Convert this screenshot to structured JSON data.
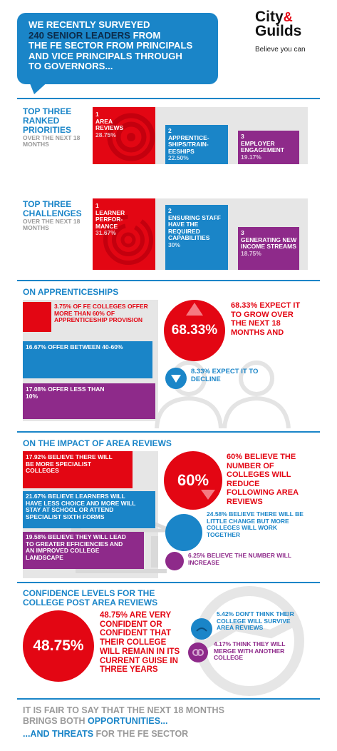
{
  "header": {
    "line1": "WE RECENTLY SURVEYED",
    "line2_bold": "240 SENIOR LEADERS",
    "line2_rest": " FROM",
    "line3": "THE FE SECTOR FROM PRINCIPALS",
    "line4": "AND VICE PRINCIPALS THROUGH",
    "line5": "TO GOVERNORS..."
  },
  "logo": {
    "city": "City",
    "amp": "&",
    "guilds": "Guilds",
    "tagline": "Believe you can"
  },
  "priorities": {
    "title": "TOP THREE RANKED PRIORITIES",
    "subtitle": "OVER THE NEXT 18 MONTHS",
    "items": [
      {
        "num": "1",
        "label": "AREA REVIEWS",
        "pct": "28.75%"
      },
      {
        "num": "2",
        "label": "APPRENTICE-SHIPS/TRAIN-EESHIPS",
        "pct": "22.50%"
      },
      {
        "num": "3",
        "label": "EMPLOYER ENGAGEMENT",
        "pct": "19.17%"
      }
    ]
  },
  "challenges": {
    "title": "TOP THREE CHALLENGES",
    "subtitle": "OVER THE NEXT 18 MONTHS",
    "items": [
      {
        "num": "1",
        "label": "LEARNER PERFOR-MANCE",
        "pct": "31.67%"
      },
      {
        "num": "2",
        "label": "ENSURING STAFF HAVE THE REQUIRED CAPABILITIES",
        "pct": "30%"
      },
      {
        "num": "3",
        "label": "GENERATING NEW INCOME STREAMS",
        "pct": "18.75%"
      }
    ]
  },
  "apprenticeships": {
    "title": "ON APPRENTICESHIPS",
    "bars": [
      {
        "text": "3.75% OF FE COLLEGES OFFER MORE THAN 60% OF APPRENTICESHIP PROVISION",
        "value": 3.75
      },
      {
        "text": "16.67% OFFER BETWEEN 40-60%",
        "value": 16.67
      },
      {
        "text": "17.08% OFFER LESS THAN 10%",
        "value": 17.08
      }
    ],
    "grow_value": "68.33%",
    "grow_text": "68.33% EXPECT IT TO GROW OVER THE NEXT 18 MONTHS AND",
    "decline_text": "8.33% EXPECT IT TO DECLINE"
  },
  "area_reviews": {
    "title": "ON THE IMPACT OF AREA REVIEWS",
    "bars": [
      {
        "text": "17.92% BELIEVE THERE WILL BE MORE SPECIALIST COLLEGES",
        "value": 17.92
      },
      {
        "text": "21.67% BELIEVE LEARNERS WILL HAVE LESS CHOICE AND MORE WILL STAY AT SCHOOL OR ATTEND SPECIALIST SIXTH FORMS",
        "value": 21.67
      },
      {
        "text": "19.58% BELIEVE THEY WILL LEAD TO GREATER EFFICIENCIES AND AN IMPROVED COLLEGE LANDSCAPE",
        "value": 19.58
      }
    ],
    "reduce_value": "60%",
    "reduce_text": "60% BELIEVE THE NUMBER OF COLLEGES WILL REDUCE FOLLOWING AREA REVIEWS",
    "little_change_text": "24.58% BELIEVE THERE WILL BE LITTLE CHANGE BUT MORE COLLEGES WILL WORK TOGETHER",
    "increase_text": "6.25% BELIEVE THE NUMBER WILL INCREASE"
  },
  "confidence": {
    "title": "CONFIDENCE LEVELS FOR THE COLLEGE POST AREA REVIEWS",
    "big_value": "48.75%",
    "big_text": "48.75% ARE VERY CONFIDENT OR CONFIDENT THAT THEIR COLLEGE WILL REMAIN IN ITS CURRENT GUISE IN THREE YEARS",
    "not_survive_text": "5.42% DON'T THINK THEIR COLLEGE WILL SURVIVE AREA REVIEWS",
    "merge_text": "4.17% THINK THEY WILL MERGE WITH ANOTHER COLLEGE"
  },
  "footer": {
    "line1_grey": "IT IS FAIR TO SAY THAT THE NEXT 18 MONTHS",
    "line2_grey": "BRINGS BOTH ",
    "line2_blue": "OPPORTUNITIES...",
    "line3_blue": "...AND THREATS",
    "line3_grey": " FOR THE FE SECTOR"
  },
  "colors": {
    "red": "#e30613",
    "blue": "#1a85c8",
    "purple": "#8e2a8a",
    "grey": "#e6e6e6"
  }
}
